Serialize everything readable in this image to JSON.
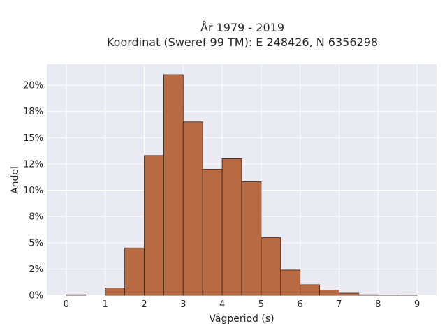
{
  "chart_data": {
    "type": "bar",
    "title_lines": [
      "År 1979 - 2019",
      "Koordinat (Sweref 99 TM): E 248426, N 6356298"
    ],
    "xlabel": "Vågperiod (s)",
    "ylabel": "Andel",
    "x_ticks": [
      "0",
      "1",
      "2",
      "3",
      "4",
      "5",
      "6",
      "7",
      "8",
      "9"
    ],
    "y_ticks": [
      {
        "value": 0,
        "label": "0%"
      },
      {
        "value": 2.5,
        "label": "2%"
      },
      {
        "value": 5,
        "label": "5%"
      },
      {
        "value": 7.5,
        "label": "8%"
      },
      {
        "value": 10,
        "label": "10%"
      },
      {
        "value": 12.5,
        "label": "12%"
      },
      {
        "value": 15,
        "label": "15%"
      },
      {
        "value": 17.5,
        "label": "18%"
      },
      {
        "value": 20,
        "label": "20%"
      }
    ],
    "xlim": [
      -0.5,
      9.5
    ],
    "ylim": [
      0,
      22
    ],
    "bin_width": 0.5,
    "bins": [
      {
        "start": 0.0,
        "value": 0.05
      },
      {
        "start": 0.5,
        "value": 0.0
      },
      {
        "start": 1.0,
        "value": 0.7
      },
      {
        "start": 1.5,
        "value": 4.5
      },
      {
        "start": 2.0,
        "value": 13.3
      },
      {
        "start": 2.5,
        "value": 21.0
      },
      {
        "start": 3.0,
        "value": 16.5
      },
      {
        "start": 3.5,
        "value": 12.0
      },
      {
        "start": 4.0,
        "value": 13.0
      },
      {
        "start": 4.5,
        "value": 10.8
      },
      {
        "start": 5.0,
        "value": 5.5
      },
      {
        "start": 5.5,
        "value": 2.4
      },
      {
        "start": 6.0,
        "value": 1.0
      },
      {
        "start": 6.5,
        "value": 0.5
      },
      {
        "start": 7.0,
        "value": 0.2
      },
      {
        "start": 7.5,
        "value": 0.05
      },
      {
        "start": 8.0,
        "value": 0.03
      },
      {
        "start": 8.5,
        "value": 0.02
      }
    ],
    "grid": true,
    "colors": {
      "background": "#eaeaf2",
      "bar_fill": "#b86a43",
      "bar_edge": "#3a2216",
      "grid": "#ffffff",
      "text": "#262626"
    }
  }
}
